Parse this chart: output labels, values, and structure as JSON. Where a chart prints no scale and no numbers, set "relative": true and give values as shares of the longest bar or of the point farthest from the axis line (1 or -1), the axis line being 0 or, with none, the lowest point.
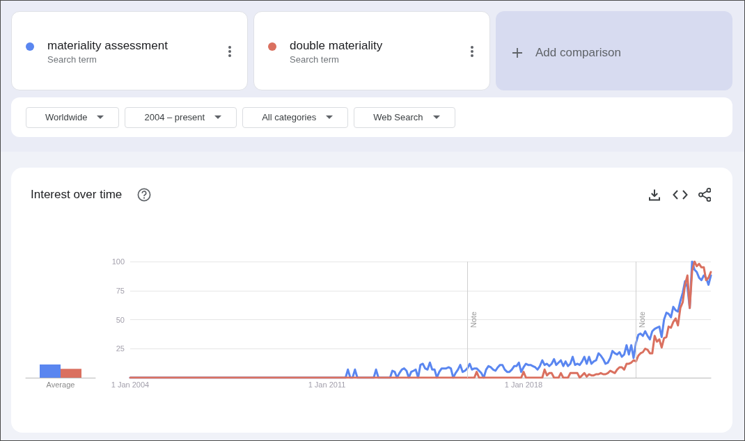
{
  "chart_data": [
    {
      "type": "line",
      "title": "Interest over time",
      "legend": "top",
      "grid": "y",
      "annotations": [
        "Search term",
        "Search term",
        "Add comparison",
        "Worldwide",
        "2004 – present",
        "All categories",
        "Web Search"
      ],
      "xlim": [
        "2004-01",
        "2024-09"
      ],
      "xticks": [
        {
          "value": "2004-01-01",
          "label": "1 Jan 2004"
        },
        {
          "value": "2011-01-01",
          "label": "1 Jan 2011"
        },
        {
          "value": "2018-01-01",
          "label": "1 Jan 2018"
        }
      ],
      "ylim": [
        0,
        100
      ],
      "yticks": [
        25,
        50,
        75,
        100
      ],
      "ref_lines": [
        {
          "axis": "x",
          "value": "2016-01-01",
          "label": "Note"
        },
        {
          "axis": "x",
          "value": "2022-01-01",
          "label": "Note"
        }
      ],
      "series": [
        {
          "name": "materiality assessment",
          "color": "#5a86f0",
          "x": [
            "2004-01",
            "2011-09",
            "2011-10",
            "2011-11",
            "2011-12",
            "2012-01",
            "2012-02",
            "2012-09",
            "2012-10",
            "2012-11",
            "2013-04",
            "2013-05",
            "2013-06",
            "2013-07",
            "2013-08",
            "2013-09",
            "2013-10",
            "2013-11",
            "2013-12",
            "2014-01",
            "2014-02",
            "2014-03",
            "2014-04",
            "2014-05",
            "2014-06",
            "2014-07",
            "2014-08",
            "2014-09",
            "2014-10",
            "2014-11",
            "2014-12",
            "2015-01",
            "2015-02",
            "2015-03",
            "2015-04",
            "2015-05",
            "2015-06",
            "2015-07",
            "2015-08",
            "2015-09",
            "2015-10",
            "2015-11",
            "2015-12",
            "2016-01",
            "2016-02",
            "2016-03",
            "2016-04",
            "2016-05",
            "2016-06",
            "2016-07",
            "2016-08",
            "2016-09",
            "2016-10",
            "2016-11",
            "2016-12",
            "2017-01",
            "2017-02",
            "2017-03",
            "2017-04",
            "2017-05",
            "2017-06",
            "2017-07",
            "2017-08",
            "2017-09",
            "2017-10",
            "2017-11",
            "2017-12",
            "2018-01",
            "2018-02",
            "2018-03",
            "2018-04",
            "2018-05",
            "2018-06",
            "2018-07",
            "2018-08",
            "2018-09",
            "2018-10",
            "2018-11",
            "2018-12",
            "2019-01",
            "2019-02",
            "2019-03",
            "2019-04",
            "2019-05",
            "2019-06",
            "2019-07",
            "2019-08",
            "2019-09",
            "2019-10",
            "2019-11",
            "2019-12",
            "2020-01",
            "2020-02",
            "2020-03",
            "2020-04",
            "2020-05",
            "2020-06",
            "2020-07",
            "2020-08",
            "2020-09",
            "2020-10",
            "2020-11",
            "2020-12",
            "2021-01",
            "2021-02",
            "2021-03",
            "2021-04",
            "2021-05",
            "2021-06",
            "2021-07",
            "2021-08",
            "2021-09",
            "2021-10",
            "2021-11",
            "2021-12",
            "2022-01",
            "2022-02",
            "2022-03",
            "2022-04",
            "2022-05",
            "2022-06",
            "2022-07",
            "2022-08",
            "2022-09",
            "2022-10",
            "2022-11",
            "2022-12",
            "2023-01",
            "2023-02",
            "2023-03",
            "2023-04",
            "2023-05",
            "2023-06",
            "2023-07",
            "2023-08",
            "2023-09",
            "2023-10",
            "2023-11",
            "2023-12",
            "2024-01",
            "2024-02",
            "2024-03",
            "2024-04",
            "2024-05",
            "2024-06",
            "2024-07",
            "2024-08",
            "2024-09"
          ],
          "values": [
            0,
            0,
            7,
            0,
            0,
            7,
            0,
            0,
            7,
            0,
            0,
            6,
            5,
            0,
            4,
            7,
            8,
            6,
            0,
            5,
            6,
            7,
            0,
            11,
            12,
            8,
            7,
            13,
            7,
            7,
            0,
            5,
            8,
            8,
            8,
            9,
            8,
            0,
            4,
            7,
            11,
            5,
            6,
            8,
            12,
            7,
            8,
            8,
            6,
            4,
            0,
            7,
            10,
            9,
            7,
            6,
            9,
            11,
            11,
            7,
            5,
            5,
            7,
            10,
            10,
            13,
            5,
            9,
            12,
            11,
            11,
            10,
            9,
            7,
            10,
            15,
            11,
            12,
            10,
            12,
            16,
            11,
            13,
            15,
            10,
            14,
            10,
            12,
            18,
            11,
            12,
            11,
            14,
            18,
            12,
            18,
            12,
            14,
            15,
            21,
            19,
            16,
            12,
            13,
            17,
            23,
            21,
            20,
            22,
            18,
            20,
            28,
            20,
            28,
            17,
            30,
            37,
            38,
            36,
            40,
            36,
            33,
            40,
            42,
            43,
            44,
            35,
            50,
            56,
            55,
            52,
            61,
            58,
            57,
            66,
            73,
            83,
            78,
            60,
            100,
            93,
            91,
            86,
            84,
            88,
            86,
            80,
            88
          ]
        },
        {
          "name": "double materiality",
          "color": "#da705f",
          "x": [
            "2004-01",
            "2016-04",
            "2016-05",
            "2016-06",
            "2017-12",
            "2018-01",
            "2018-02",
            "2018-09",
            "2018-10",
            "2018-11",
            "2018-12",
            "2019-01",
            "2019-02",
            "2019-04",
            "2019-05",
            "2019-06",
            "2019-08",
            "2019-09",
            "2019-10",
            "2019-11",
            "2019-12",
            "2020-01",
            "2020-02",
            "2020-03",
            "2020-04",
            "2020-05",
            "2020-06",
            "2020-07",
            "2020-08",
            "2020-09",
            "2020-10",
            "2020-11",
            "2020-12",
            "2021-01",
            "2021-02",
            "2021-03",
            "2021-04",
            "2021-05",
            "2021-06",
            "2021-07",
            "2021-08",
            "2021-09",
            "2021-10",
            "2021-11",
            "2021-12",
            "2022-01",
            "2022-02",
            "2022-03",
            "2022-04",
            "2022-05",
            "2022-06",
            "2022-07",
            "2022-08",
            "2022-09",
            "2022-10",
            "2022-11",
            "2022-12",
            "2023-01",
            "2023-02",
            "2023-03",
            "2023-04",
            "2023-05",
            "2023-06",
            "2023-07",
            "2023-08",
            "2023-09",
            "2023-10",
            "2023-11",
            "2023-12",
            "2024-01",
            "2024-02",
            "2024-03",
            "2024-04",
            "2024-05",
            "2024-06",
            "2024-07",
            "2024-08",
            "2024-09"
          ],
          "values": [
            0,
            0,
            5,
            0,
            0,
            5,
            0,
            0,
            7,
            2,
            4,
            4,
            0,
            0,
            4,
            0,
            0,
            4,
            4,
            4,
            4,
            0,
            2,
            4,
            1,
            3,
            2,
            2,
            3,
            3,
            4,
            3,
            3,
            4,
            6,
            5,
            4,
            7,
            9,
            9,
            7,
            12,
            12,
            13,
            15,
            14,
            19,
            21,
            22,
            25,
            24,
            21,
            21,
            36,
            31,
            33,
            26,
            34,
            35,
            44,
            43,
            48,
            51,
            45,
            60,
            65,
            80,
            88,
            60,
            92,
            100,
            96,
            98,
            95,
            95,
            84,
            86,
            91
          ]
        }
      ]
    },
    {
      "type": "bar",
      "relative": true,
      "categories": [
        "Average"
      ],
      "series": [
        {
          "color": "#5a86f0",
          "values": [
            1
          ]
        },
        {
          "color": "#da705f",
          "values": [
            0.67
          ]
        }
      ]
    }
  ]
}
